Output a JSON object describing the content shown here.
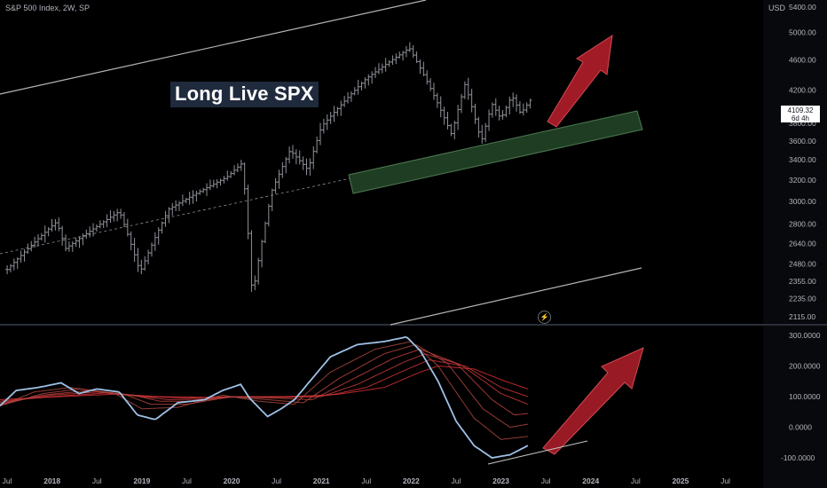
{
  "header": {
    "title_parts": [
      "S&P 500 Index",
      "2W",
      "SP"
    ],
    "currency": "USD"
  },
  "annotation": {
    "text": "Long Live SPX"
  },
  "price_label": {
    "price": "4109.32",
    "countdown": "6d 4h"
  },
  "icons": {
    "bolt": "lightning-icon"
  },
  "colors": {
    "background": "#000000",
    "candle": "#8e9199",
    "zone_fill": "#1f3d23",
    "zone_edge": "#4c7a52",
    "arrow": "#b11e2a",
    "fast_line": "#9ec1e6",
    "channel_line": "#b4b4b4"
  },
  "chart_data": [
    {
      "type": "ohlc",
      "title": "S&P 500 Index, 2W, SP",
      "scale": "log",
      "y_ticks": [
        5400,
        5000,
        4600,
        4200,
        3800,
        3600,
        3400,
        3200,
        3000,
        2800,
        2640,
        2480,
        2355,
        2235,
        2115
      ],
      "x_ticks": [
        "Jul",
        "2018",
        "Jul",
        "2019",
        "Jul",
        "2020",
        "Jul",
        "2021",
        "Jul",
        "2022",
        "Jul",
        "2023",
        "Jul",
        "2024",
        "Jul",
        "2025",
        "Jul"
      ],
      "x_range": [
        2017.42,
        2025.92
      ],
      "last_price": 4109.32,
      "key_points": [
        {
          "date": 2017.5,
          "close": 2440
        },
        {
          "date": 2018.05,
          "close": 2820
        },
        {
          "date": 2018.15,
          "close": 2600
        },
        {
          "date": 2018.75,
          "close": 2910
        },
        {
          "date": 2018.98,
          "close": 2420
        },
        {
          "date": 2019.3,
          "close": 2930
        },
        {
          "date": 2019.95,
          "close": 3230
        },
        {
          "date": 2020.12,
          "close": 3370
        },
        {
          "date": 2020.23,
          "close": 2240
        },
        {
          "date": 2020.45,
          "close": 3100
        },
        {
          "date": 2020.65,
          "close": 3500
        },
        {
          "date": 2020.85,
          "close": 3300
        },
        {
          "date": 2021.0,
          "close": 3760
        },
        {
          "date": 2021.5,
          "close": 4350
        },
        {
          "date": 2021.98,
          "close": 4770
        },
        {
          "date": 2022.45,
          "close": 3670
        },
        {
          "date": 2022.6,
          "close": 4280
        },
        {
          "date": 2022.78,
          "close": 3590
        },
        {
          "date": 2022.9,
          "close": 4030
        },
        {
          "date": 2023.0,
          "close": 3850
        },
        {
          "date": 2023.12,
          "close": 4130
        },
        {
          "date": 2023.22,
          "close": 3910
        },
        {
          "date": 2023.35,
          "close": 4109
        }
      ]
    },
    {
      "type": "line",
      "title": "",
      "y_ticks": [
        300,
        200,
        100,
        0,
        -100
      ],
      "series": [
        {
          "role": "fast",
          "points": [
            [
              2017.42,
              70
            ],
            [
              2017.6,
              120
            ],
            [
              2017.85,
              130
            ],
            [
              2018.1,
              145
            ],
            [
              2018.3,
              110
            ],
            [
              2018.5,
              125
            ],
            [
              2018.75,
              115
            ],
            [
              2018.95,
              40
            ],
            [
              2019.15,
              25
            ],
            [
              2019.4,
              80
            ],
            [
              2019.7,
              90
            ],
            [
              2019.9,
              120
            ],
            [
              2020.1,
              140
            ],
            [
              2020.2,
              95
            ],
            [
              2020.4,
              35
            ],
            [
              2020.55,
              60
            ],
            [
              2020.7,
              90
            ],
            [
              2020.9,
              160
            ],
            [
              2021.1,
              230
            ],
            [
              2021.4,
              270
            ],
            [
              2021.7,
              280
            ],
            [
              2021.95,
              295
            ],
            [
              2022.1,
              250
            ],
            [
              2022.3,
              150
            ],
            [
              2022.5,
              20
            ],
            [
              2022.7,
              -60
            ],
            [
              2022.9,
              -100
            ],
            [
              2023.1,
              -90
            ],
            [
              2023.3,
              -60
            ]
          ]
        },
        {
          "role": "slow_1",
          "points": [
            [
              2017.42,
              70
            ],
            [
              2017.8,
              115
            ],
            [
              2018.2,
              130
            ],
            [
              2018.7,
              110
            ],
            [
              2019.0,
              60
            ],
            [
              2019.4,
              65
            ],
            [
              2019.9,
              105
            ],
            [
              2020.3,
              85
            ],
            [
              2020.7,
              75
            ],
            [
              2021.1,
              180
            ],
            [
              2021.6,
              255
            ],
            [
              2022.0,
              280
            ],
            [
              2022.3,
              200
            ],
            [
              2022.7,
              30
            ],
            [
              2023.0,
              -40
            ],
            [
              2023.3,
              -30
            ]
          ]
        },
        {
          "role": "slow_2",
          "points": [
            [
              2017.42,
              70
            ],
            [
              2017.9,
              110
            ],
            [
              2018.3,
              125
            ],
            [
              2018.8,
              108
            ],
            [
              2019.1,
              75
            ],
            [
              2019.5,
              75
            ],
            [
              2020.0,
              100
            ],
            [
              2020.4,
              90
            ],
            [
              2020.8,
              80
            ],
            [
              2021.2,
              160
            ],
            [
              2021.7,
              240
            ],
            [
              2022.05,
              270
            ],
            [
              2022.4,
              210
            ],
            [
              2022.8,
              60
            ],
            [
              2023.1,
              0
            ],
            [
              2023.3,
              10
            ]
          ]
        },
        {
          "role": "slow_3",
          "points": [
            [
              2017.42,
              75
            ],
            [
              2017.9,
              105
            ],
            [
              2018.4,
              120
            ],
            [
              2018.9,
              105
            ],
            [
              2019.2,
              85
            ],
            [
              2019.6,
              85
            ],
            [
              2020.0,
              100
            ],
            [
              2020.5,
              95
            ],
            [
              2020.9,
              90
            ],
            [
              2021.3,
              150
            ],
            [
              2021.8,
              225
            ],
            [
              2022.1,
              255
            ],
            [
              2022.5,
              210
            ],
            [
              2022.9,
              90
            ],
            [
              2023.15,
              40
            ],
            [
              2023.3,
              45
            ]
          ]
        },
        {
          "role": "slow_4",
          "points": [
            [
              2017.42,
              80
            ],
            [
              2018.0,
              105
            ],
            [
              2018.5,
              115
            ],
            [
              2019.0,
              100
            ],
            [
              2019.3,
              90
            ],
            [
              2019.7,
              92
            ],
            [
              2020.1,
              100
            ],
            [
              2020.6,
              98
            ],
            [
              2021.0,
              100
            ],
            [
              2021.4,
              140
            ],
            [
              2021.9,
              210
            ],
            [
              2022.15,
              240
            ],
            [
              2022.55,
              205
            ],
            [
              2023.0,
              110
            ],
            [
              2023.3,
              75
            ]
          ]
        },
        {
          "role": "slow_5",
          "points": [
            [
              2017.42,
              85
            ],
            [
              2018.0,
              100
            ],
            [
              2018.6,
              112
            ],
            [
              2019.1,
              100
            ],
            [
              2019.5,
              95
            ],
            [
              2020.0,
              100
            ],
            [
              2020.6,
              100
            ],
            [
              2021.1,
              105
            ],
            [
              2021.5,
              130
            ],
            [
              2022.0,
              195
            ],
            [
              2022.2,
              220
            ],
            [
              2022.6,
              200
            ],
            [
              2023.0,
              130
            ],
            [
              2023.3,
              100
            ]
          ]
        },
        {
          "role": "slow_6",
          "points": [
            [
              2017.42,
              90
            ],
            [
              2018.1,
              100
            ],
            [
              2018.7,
              108
            ],
            [
              2019.2,
              100
            ],
            [
              2019.7,
              98
            ],
            [
              2020.3,
              100
            ],
            [
              2020.8,
              100
            ],
            [
              2021.2,
              108
            ],
            [
              2021.7,
              130
            ],
            [
              2022.1,
              180
            ],
            [
              2022.3,
              200
            ],
            [
              2022.7,
              190
            ],
            [
              2023.05,
              150
            ],
            [
              2023.3,
              125
            ]
          ]
        }
      ]
    }
  ]
}
